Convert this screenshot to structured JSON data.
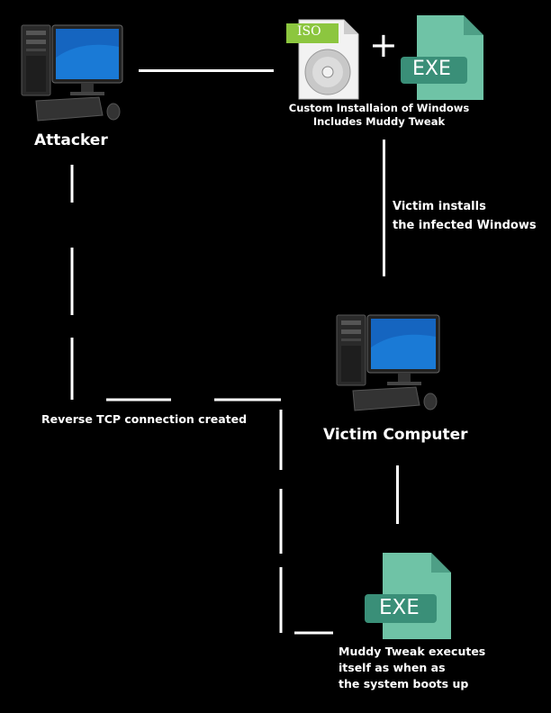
{
  "nodes": {
    "attacker": {
      "label": "Attacker"
    },
    "victim": {
      "label": "Victim Computer"
    },
    "iso_badge": "ISO",
    "plus": "+",
    "exe_badge_top": "EXE",
    "exe_badge_bottom": "EXE"
  },
  "captions": {
    "iso_line1": "Custom Installaion of Windows",
    "iso_line2": "Includes Muddy Tweak",
    "install_line1": "Victim installs",
    "install_line2": "the infected Windows",
    "reverse_tcp": "Reverse TCP connection created",
    "exec_line1": "Muddy Tweak executes",
    "exec_line2": "itself as when as",
    "exec_line3": "the system boots up"
  },
  "colors": {
    "background": "#000000",
    "line": "#ffffff",
    "exe_file": "#6fc3a6",
    "exe_badge": "#3a8f78",
    "iso_badge": "#8cc63f",
    "screen": "#1565c0"
  },
  "icons": [
    "attacker-computer-icon",
    "iso-disc-icon",
    "exe-file-icon",
    "victim-computer-icon"
  ]
}
